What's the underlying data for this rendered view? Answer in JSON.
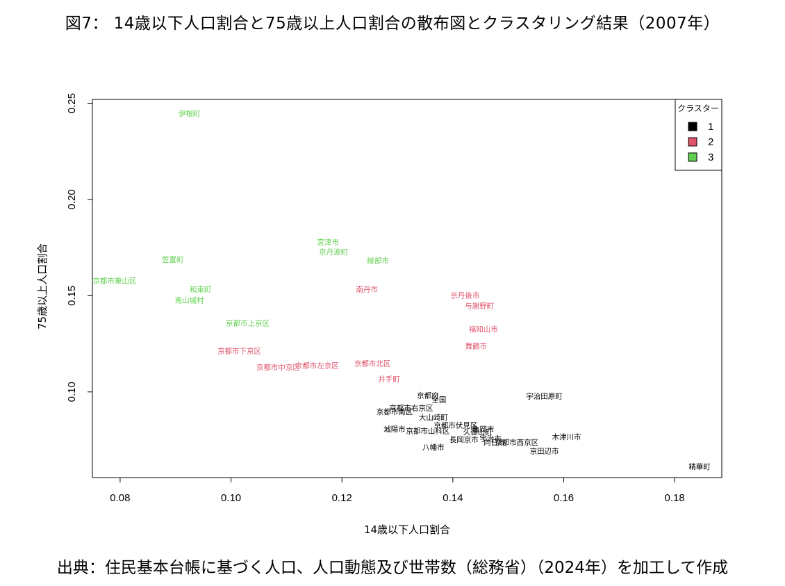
{
  "title": "図7： 14歳以下人口割合と75歳以上人口割合の散布図とクラスタリング結果（2007年）",
  "source": "出典：住民基本台帳に基づく人口、人口動態及び世帯数（総務省）（2024年）を加工して作成",
  "colors": {
    "1": "#000000",
    "2": "#df536b",
    "3": "#61d04f"
  },
  "chart_data": {
    "type": "scatter",
    "xlabel": "14歳以下人口割合",
    "ylabel": "75歳以上人口割合",
    "xlim": [
      0.075,
      0.1885
    ],
    "ylim": [
      0.0555,
      0.252
    ],
    "xticks": [
      0.08,
      0.1,
      0.12,
      0.14,
      0.16,
      0.18
    ],
    "xtick_labels": [
      "0.08",
      "0.10",
      "0.12",
      "0.14",
      "0.16",
      "0.18"
    ],
    "yticks": [
      0.1,
      0.15,
      0.2,
      0.25
    ],
    "ytick_labels": [
      "0.10",
      "0.15",
      "0.20",
      "0.25"
    ],
    "grid": false,
    "legend": {
      "title": "クラスター",
      "position": "top-right",
      "entries": [
        {
          "label": "1",
          "cluster": "1"
        },
        {
          "label": "2",
          "cluster": "2"
        },
        {
          "label": "3",
          "cluster": "3"
        }
      ]
    },
    "points": [
      {
        "label": "伊根町",
        "x": 0.0925,
        "y": 0.2445,
        "cluster": "3"
      },
      {
        "label": "宮津市",
        "x": 0.1175,
        "y": 0.1775,
        "cluster": "3"
      },
      {
        "label": "京丹波町",
        "x": 0.1185,
        "y": 0.1725,
        "cluster": "3"
      },
      {
        "label": "綾部市",
        "x": 0.1265,
        "y": 0.168,
        "cluster": "3"
      },
      {
        "label": "笠置町",
        "x": 0.0895,
        "y": 0.1685,
        "cluster": "3"
      },
      {
        "label": "京都市東山区",
        "x": 0.079,
        "y": 0.1575,
        "cluster": "3"
      },
      {
        "label": "和束町",
        "x": 0.0945,
        "y": 0.153,
        "cluster": "3"
      },
      {
        "label": "南山城村",
        "x": 0.0925,
        "y": 0.1475,
        "cluster": "3"
      },
      {
        "label": "京都市上京区",
        "x": 0.103,
        "y": 0.1355,
        "cluster": "3"
      },
      {
        "label": "南丹市",
        "x": 0.1245,
        "y": 0.153,
        "cluster": "2"
      },
      {
        "label": "京丹後市",
        "x": 0.1422,
        "y": 0.15,
        "cluster": "2"
      },
      {
        "label": "与謝野町",
        "x": 0.1448,
        "y": 0.1445,
        "cluster": "2"
      },
      {
        "label": "福知山市",
        "x": 0.1455,
        "y": 0.1325,
        "cluster": "2"
      },
      {
        "label": "舞鶴市",
        "x": 0.1442,
        "y": 0.1235,
        "cluster": "2"
      },
      {
        "label": "京都市下京区",
        "x": 0.1015,
        "y": 0.121,
        "cluster": "2"
      },
      {
        "label": "京都市左京区",
        "x": 0.1155,
        "y": 0.1135,
        "cluster": "2"
      },
      {
        "label": "京都市中京区",
        "x": 0.1085,
        "y": 0.1125,
        "cluster": "2"
      },
      {
        "label": "京都市北区",
        "x": 0.1255,
        "y": 0.1145,
        "cluster": "2"
      },
      {
        "label": "井手町",
        "x": 0.1285,
        "y": 0.1065,
        "cluster": "2"
      },
      {
        "label": "京都府",
        "x": 0.1355,
        "y": 0.098,
        "cluster": "1"
      },
      {
        "label": "全国",
        "x": 0.1375,
        "y": 0.0957,
        "cluster": "1"
      },
      {
        "label": "宇治田原町",
        "x": 0.1565,
        "y": 0.0975,
        "cluster": "1"
      },
      {
        "label": "京都市右京区",
        "x": 0.1325,
        "y": 0.0915,
        "cluster": "1"
      },
      {
        "label": "京都市南区",
        "x": 0.1295,
        "y": 0.0895,
        "cluster": "1"
      },
      {
        "label": "大山崎町",
        "x": 0.1365,
        "y": 0.0865,
        "cluster": "1"
      },
      {
        "label": "京都市伏見区",
        "x": 0.1405,
        "y": 0.0825,
        "cluster": "1"
      },
      {
        "label": "亀岡市",
        "x": 0.1455,
        "y": 0.0805,
        "cluster": "1"
      },
      {
        "label": "久御山町",
        "x": 0.1445,
        "y": 0.079,
        "cluster": "1"
      },
      {
        "label": "宇治市",
        "x": 0.1468,
        "y": 0.0755,
        "cluster": "1"
      },
      {
        "label": "城陽市",
        "x": 0.1295,
        "y": 0.0805,
        "cluster": "1"
      },
      {
        "label": "京都市山科区",
        "x": 0.1355,
        "y": 0.0795,
        "cluster": "1"
      },
      {
        "label": "長岡京市",
        "x": 0.142,
        "y": 0.075,
        "cluster": "1"
      },
      {
        "label": "向日市",
        "x": 0.1475,
        "y": 0.0735,
        "cluster": "1"
      },
      {
        "label": "京都市西京区",
        "x": 0.1515,
        "y": 0.0735,
        "cluster": "1"
      },
      {
        "label": "木津川市",
        "x": 0.1605,
        "y": 0.0765,
        "cluster": "1"
      },
      {
        "label": "京田辺市",
        "x": 0.1565,
        "y": 0.069,
        "cluster": "1"
      },
      {
        "label": "八幡市",
        "x": 0.1365,
        "y": 0.071,
        "cluster": "1"
      },
      {
        "label": "精華町",
        "x": 0.1845,
        "y": 0.061,
        "cluster": "1"
      }
    ]
  }
}
